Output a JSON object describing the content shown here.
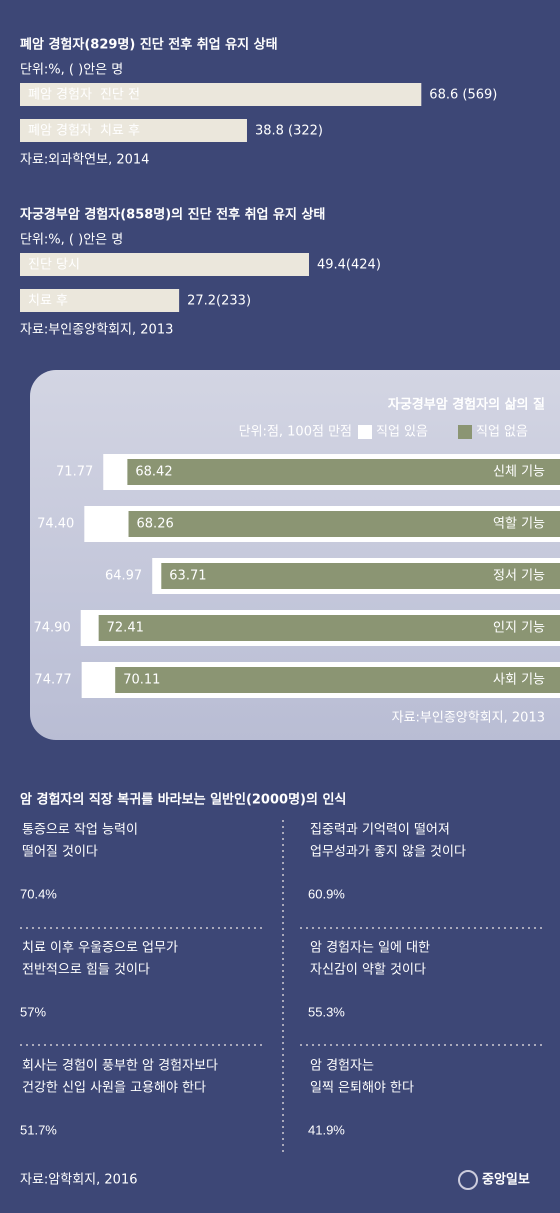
{
  "chart_data": [
    {
      "type": "bar",
      "title": "폐암 경험자(829명) 진단 전후 취업 유지 상태",
      "subtitle": "단위:%, ( )안은 명",
      "groups": [
        "폐암 경험자",
        "폐암 경험자"
      ],
      "categories": [
        "진단 전",
        "치료 후"
      ],
      "values": [
        68.6,
        38.8
      ],
      "value_labels": [
        "68.6 (569)",
        "38.8 (322)"
      ],
      "color": "#ebe7dc",
      "label_color": "#c0392b",
      "source": "자료:외과학연보, 2014"
    },
    {
      "type": "bar",
      "title": "자궁경부암 경험자(858명)의 진단 전후 취업 유지 상태",
      "subtitle": "단위:%, ( )안은 명",
      "categories": [
        "진단 당시",
        "치료 후"
      ],
      "values": [
        49.4,
        27.2
      ],
      "value_labels": [
        "49.4(424)",
        "27.2(233)"
      ],
      "color": "#ebe7dc",
      "label_color": "#c0392b",
      "source": "자료:부인종양학회지, 2013"
    },
    {
      "type": "grouped-bar",
      "title": "자궁경부암 경험자의 삶의 질",
      "subtitle": "단위:점, 100점 만점",
      "categories": [
        "신체 기능",
        "역할 기능",
        "정서 기능",
        "인지 기능",
        "사회 기능"
      ],
      "series": [
        {
          "name": "직업 있음",
          "color": "#ffffff",
          "values": [
            71.77,
            74.4,
            64.97,
            74.9,
            74.77
          ],
          "value_labels": [
            "71.77",
            "74.40",
            "64.97",
            "74.90",
            "74.77"
          ]
        },
        {
          "name": "직업 없음",
          "color": "#8b9573",
          "values": [
            68.42,
            68.26,
            63.71,
            72.41,
            70.11
          ],
          "value_labels": [
            "68.42",
            "68.26",
            "63.71",
            "72.41",
            "70.11"
          ]
        }
      ],
      "source": "자료:부인종양학회지, 2013"
    },
    {
      "type": "stat",
      "title": "암 경험자의 직장 복귀를 바라보는 일반인(2000명)의 인식",
      "statements": [
        [
          "통증으로 작업 능력이",
          "떨어질 것이다"
        ],
        [
          "집중력과 기억력이 떨어져",
          "업무성과가 좋지 않을 것이다"
        ],
        [
          "치료 이후 우울증으로 업무가",
          "전반적으로 힘들 것이다"
        ],
        [
          "암 경험자는 일에 대한",
          "자신감이 약할 것이다"
        ],
        [
          "회사는 경험이 풍부한 암 경험자보다",
          "건강한 신입 사원을 고용해야 한다"
        ],
        [
          "암 경험자는",
          "일찍 은퇴해야 한다"
        ]
      ],
      "values": [
        70.4,
        60.9,
        57,
        55.3,
        51.7,
        41.9
      ],
      "value_labels": [
        "70.4%",
        "60.9%",
        "57%",
        "55.3%",
        "51.7%",
        "41.9%"
      ],
      "color": "#f4c94c",
      "source": "자료:암학회지, 2016"
    }
  ],
  "credit": "중앙일보"
}
